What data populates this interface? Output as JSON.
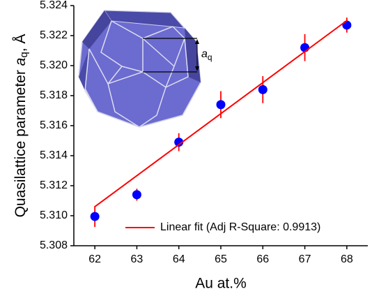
{
  "chart_data": {
    "type": "scatter",
    "ylabel": "Quasilattice parameter ",
    "ylabel_symbol": "a",
    "ylabel_sub": "q",
    "ylabel_unit": ", Å",
    "xlabel": "Au at.%",
    "inset_label": "a",
    "inset_label_sub": "q",
    "x": [
      62,
      63,
      64,
      65,
      66,
      67,
      68
    ],
    "xlim": [
      61.5,
      68.5
    ],
    "xticks": [
      62,
      63,
      64,
      65,
      66,
      67,
      68
    ],
    "ylim": [
      5.308,
      5.324
    ],
    "yticks": [
      5.308,
      {
        "value": 5.31,
        "label": "5.310"
      },
      5.312,
      5.314,
      5.316,
      5.318,
      {
        "value": 5.32,
        "label": "5.320"
      },
      5.322,
      5.324
    ],
    "legend": "lower right",
    "series": [
      {
        "mode": "markers",
        "color": "#0000ff",
        "error_color": "#ff0000",
        "values": [
          5.30995,
          5.3114,
          5.3149,
          5.3174,
          5.3184,
          5.3212,
          5.3227
        ],
        "errors": [
          0.0007,
          0.0004,
          0.0006,
          0.0009,
          0.0009,
          0.0009,
          0.0005
        ]
      },
      {
        "mode": "line",
        "name": "Linear fit (Adj R-Square: 0.9913)",
        "color": "#ff0000",
        "x": [
          62,
          68
        ],
        "values": [
          5.3106,
          5.323
        ]
      }
    ]
  }
}
